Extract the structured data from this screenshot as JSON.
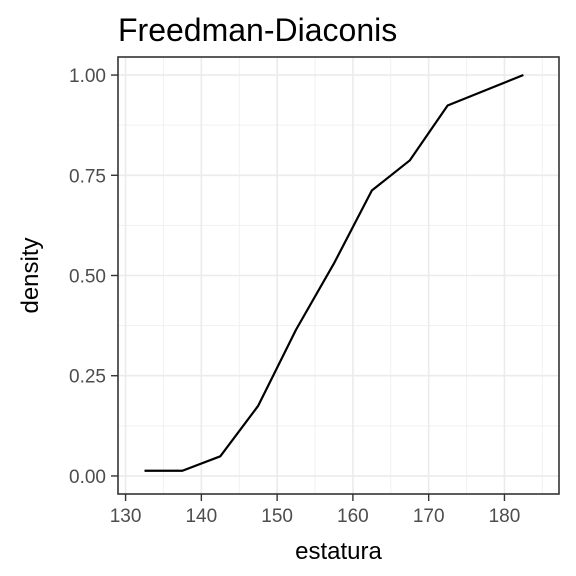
{
  "chart_data": {
    "type": "line",
    "title": "Freedman-Diaconis",
    "xlabel": "estatura",
    "ylabel": "density",
    "xlim": [
      129.0,
      187.2
    ],
    "ylim": [
      -0.045,
      1.045
    ],
    "x_ticks": [
      130,
      140,
      150,
      160,
      170,
      180
    ],
    "x_tick_labels": [
      "130",
      "140",
      "150",
      "160",
      "170",
      "180"
    ],
    "y_ticks": [
      0.0,
      0.25,
      0.5,
      0.75,
      1.0
    ],
    "y_tick_labels": [
      "0.00",
      "0.25",
      "0.50",
      "0.75",
      "1.00"
    ],
    "grid": true,
    "series": [
      {
        "color": "#000000",
        "x": [
          132.5,
          137.5,
          142.5,
          147.5,
          152.5,
          157.5,
          162.5,
          167.5,
          172.5,
          177.5,
          182.5
        ],
        "y": [
          0.013,
          0.013,
          0.049,
          0.175,
          0.365,
          0.53,
          0.712,
          0.787,
          0.924,
          0.962,
          1.0
        ]
      }
    ]
  }
}
